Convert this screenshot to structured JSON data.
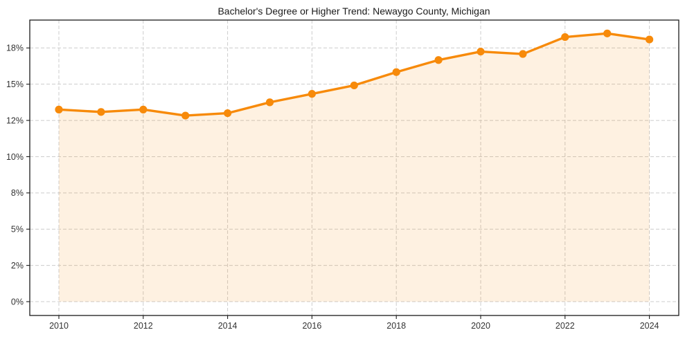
{
  "chart_data": {
    "type": "line",
    "title": "Bachelor's Degree or Higher Trend: Newaygo County, Michigan",
    "x": [
      2010,
      2011,
      2012,
      2013,
      2014,
      2015,
      2016,
      2017,
      2018,
      2019,
      2020,
      2021,
      2022,
      2023,
      2024
    ],
    "series": [
      {
        "name": "Bachelor's degree or higher",
        "values": [
          12.9,
          12.7,
          12.9,
          12.4,
          12.6,
          13.5,
          14.2,
          14.9,
          16.0,
          17.0,
          17.7,
          17.5,
          18.9,
          19.2,
          18.7
        ]
      }
    ],
    "xlabel": "",
    "ylabel": "",
    "xticks": [
      2010,
      2012,
      2014,
      2016,
      2018,
      2020,
      2022,
      2024
    ],
    "xtick_labels": [
      "2010",
      "2012",
      "2014",
      "2016",
      "2018",
      "2020",
      "2022",
      "2024"
    ],
    "ytick_values": [
      0,
      2,
      5,
      8,
      10,
      12,
      15,
      18
    ],
    "ytick_labels": [
      "0%",
      "2%",
      "5%",
      "8%",
      "10%",
      "12%",
      "15%",
      "18%"
    ],
    "ytick_spacing": "uniform-pixel",
    "grid": true,
    "grid_style": "dashed",
    "legend": false,
    "marker": "circle",
    "area_fill": true,
    "colors": {
      "line": "#f78a0a",
      "marker": "#f78a0a",
      "area_fill": "rgba(247,138,10,0.12)",
      "grid": "#cccccc",
      "axis": "#1a1a1a",
      "tick": "#333333",
      "text": "#333333",
      "title": "#1a1a1a"
    }
  }
}
